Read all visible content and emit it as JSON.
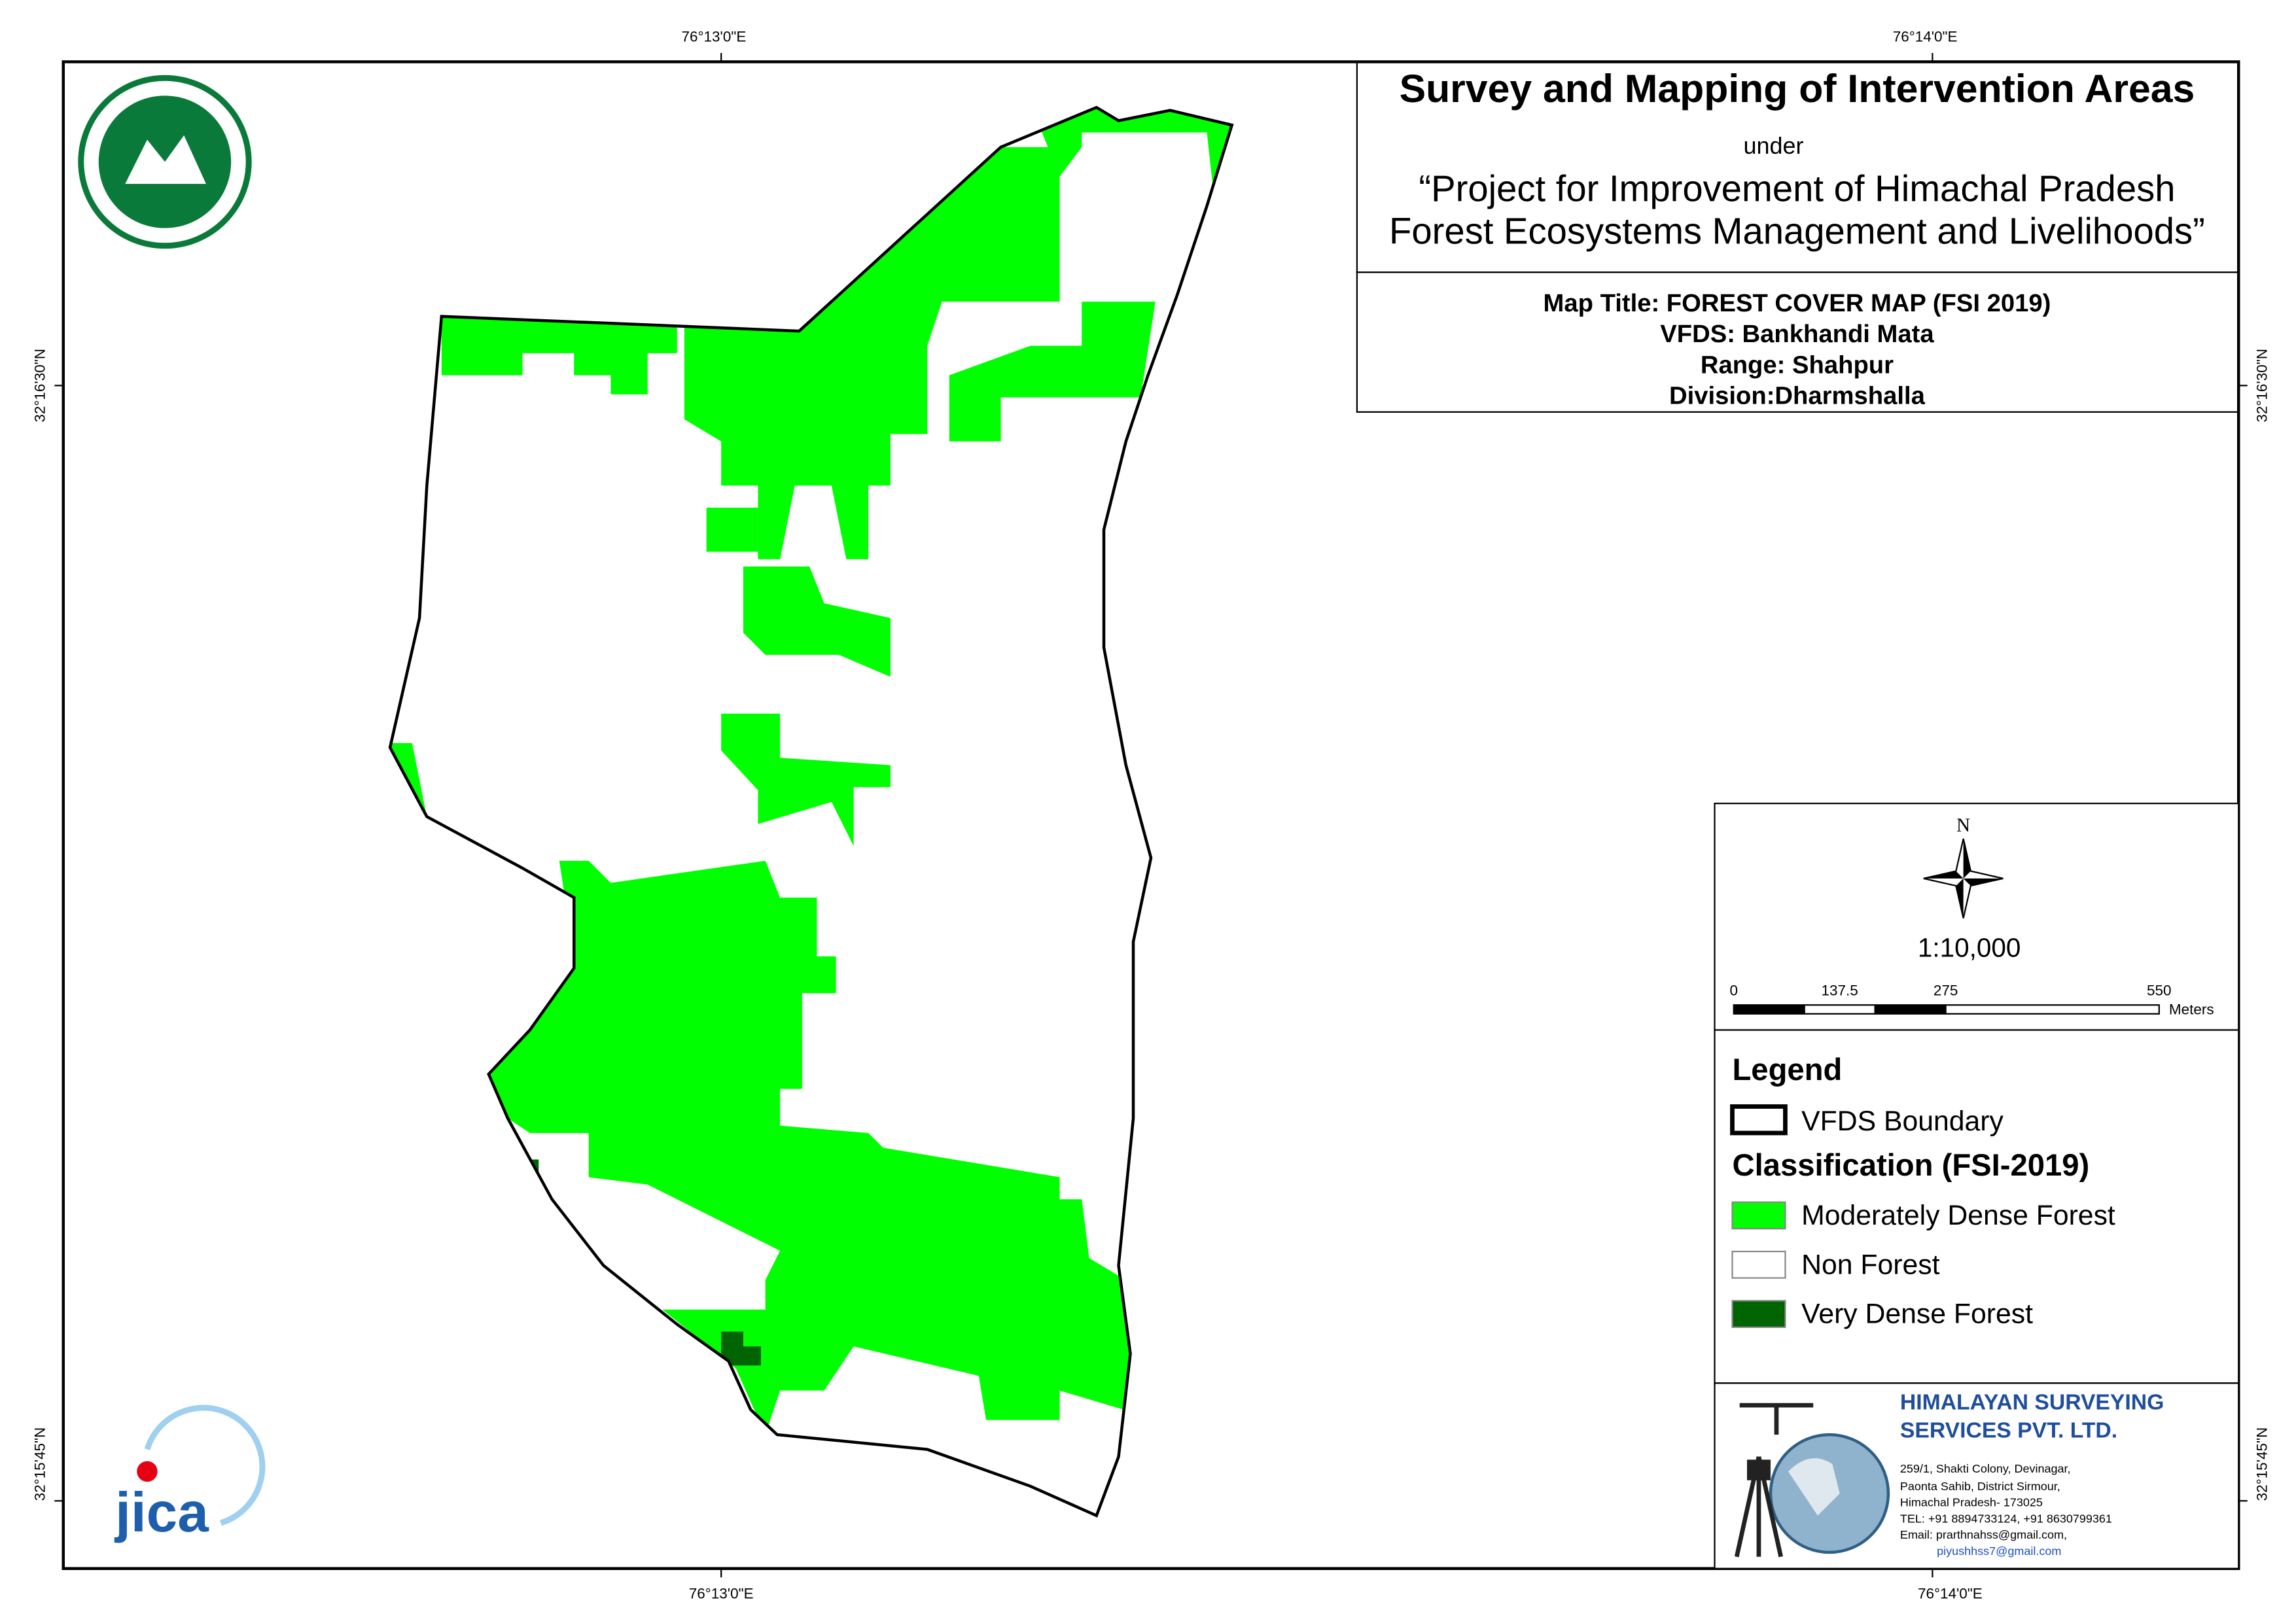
{
  "grid_labels": {
    "top": [
      "76°13'0\"E",
      "76°14'0\"E"
    ],
    "bottom": [
      "76°13'0\"E",
      "76°14'0\"E"
    ],
    "left": [
      "32°16'30\"N",
      "32°15'45\"N"
    ],
    "right": [
      "32°16'30\"N",
      "32°15'45\"N"
    ]
  },
  "header": {
    "title": "Survey and Mapping of Intervention Areas",
    "under": "under",
    "project": [
      "“Project for Improvement of Himachal Pradesh",
      "Forest Ecosystems Management and Livelihoods”"
    ]
  },
  "map_info": [
    "Map Title: FOREST COVER MAP (FSI 2019)",
    "VFDS: Bankhandi Mata",
    "Range: Shahpur",
    "Division:Dharmshalla"
  ],
  "north": "N",
  "scale": "1:10,000",
  "scale_bar": {
    "labels": [
      "0",
      "137.5",
      "275",
      "550"
    ],
    "unit": "Meters"
  },
  "legend": {
    "title": "Legend",
    "boundary": "VFDS Boundary",
    "classification_title": "Classification (FSI-2019)",
    "classes": [
      {
        "label": "Moderately Dense Forest",
        "color": "#00ff00"
      },
      {
        "label": "Non Forest",
        "color": "#ffffff"
      },
      {
        "label": "Very Dense Forest",
        "color": "#006400"
      }
    ]
  },
  "company": {
    "name": [
      "HIMALAYAN SURVEYING",
      "SERVICES PVT. LTD."
    ],
    "address": [
      "259/1, Shakti Colony, Devinagar,",
      "Paonta Sahib, District Sirmour,",
      "Himachal Pradesh- 173025",
      "TEL: +91 8894733124, +91 8630799361",
      "Email: prarthnahss@gmail.com,",
      "piyushhss7@gmail.com"
    ]
  },
  "logos": {
    "jica": "jica"
  }
}
